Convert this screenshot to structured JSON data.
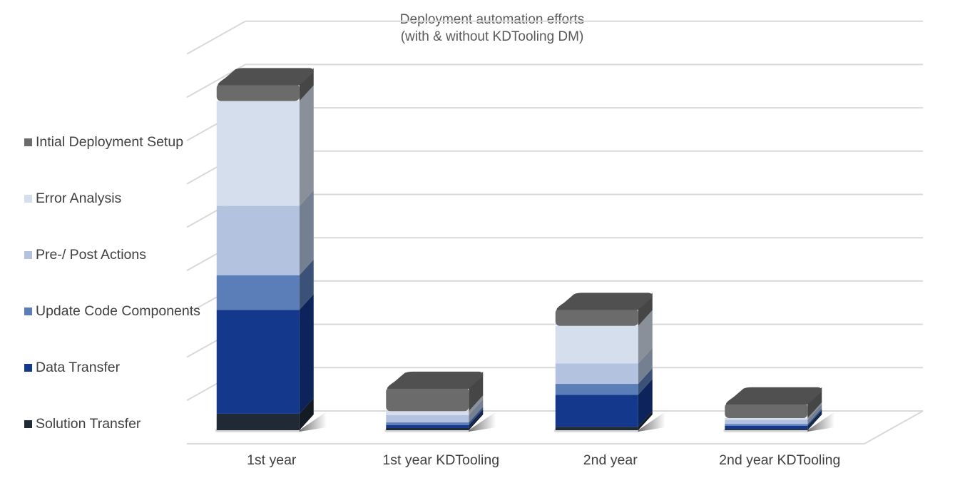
{
  "chart_data": {
    "type": "bar",
    "stacked": true,
    "three_d": true,
    "title": "Deployment automation efforts",
    "subtitle": "(with & without KDTooling DM)",
    "xlabel": "",
    "ylabel": "",
    "categories": [
      "1st year",
      "1st year KDTooling",
      "2nd year",
      "2nd year KDTooling"
    ],
    "ylim": [
      0,
      9
    ],
    "grid": true,
    "legend_position": "left",
    "series": [
      {
        "name": "Solution Transfer",
        "color": "#1f2a36",
        "values": [
          0.38,
          0.05,
          0.08,
          0.03
        ]
      },
      {
        "name": "Data Transfer",
        "color": "#13388c",
        "values": [
          2.4,
          0.07,
          0.74,
          0.07
        ]
      },
      {
        "name": "Update Code Components",
        "color": "#5b7db8",
        "values": [
          0.8,
          0.06,
          0.25,
          0.04
        ]
      },
      {
        "name": "Pre-/ Post Actions",
        "color": "#b3c3df",
        "values": [
          1.6,
          0.17,
          0.47,
          0.1
        ]
      },
      {
        "name": "Error Analysis",
        "color": "#d5deec",
        "values": [
          2.42,
          0.09,
          0.87,
          0.04
        ]
      },
      {
        "name": "Intial Deployment Setup",
        "color": "#6b6b6b",
        "values": [
          0.4,
          0.55,
          0.4,
          0.35
        ]
      }
    ]
  }
}
